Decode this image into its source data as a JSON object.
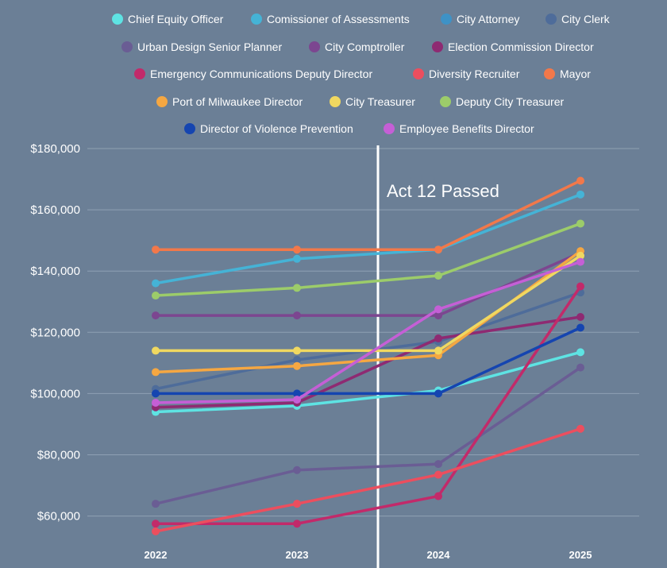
{
  "chart_data": {
    "type": "line",
    "x": [
      "2022",
      "2023",
      "2024",
      "2025"
    ],
    "ylim": [
      50000,
      180000
    ],
    "yticks": [
      60000,
      80000,
      100000,
      120000,
      140000,
      160000,
      180000
    ],
    "ytick_labels": [
      "$60,000",
      "$80,000",
      "$100,000",
      "$120,000",
      "$140,000",
      "$160,000",
      "$180,000"
    ],
    "grid": "horizontal",
    "legend_position": "top",
    "annotation": {
      "label": "Act 12 Passed",
      "between": [
        "2023",
        "2024"
      ]
    },
    "series": [
      {
        "name": "Chief Equity Officer",
        "color": "#5ee3e3",
        "values": [
          94000,
          96000,
          101000,
          113500
        ]
      },
      {
        "name": "Comissioner of Assessments",
        "color": "#45b3d6",
        "values": [
          136000,
          144000,
          147000,
          165000
        ]
      },
      {
        "name": "City Attorney",
        "color": "#3e92c6",
        "values": [
          null,
          null,
          null,
          null
        ]
      },
      {
        "name": "City Clerk",
        "color": "#4e6c9a",
        "values": [
          101500,
          111000,
          117000,
          133000
        ]
      },
      {
        "name": "Urban Design Senior Planner",
        "color": "#6a5d94",
        "values": [
          64000,
          75000,
          77000,
          108500
        ]
      },
      {
        "name": "City Comptroller",
        "color": "#7c4690",
        "values": [
          125500,
          125500,
          125500,
          146000
        ]
      },
      {
        "name": "Election Commission Director",
        "color": "#8e2a72",
        "values": [
          95500,
          97000,
          118000,
          125000
        ]
      },
      {
        "name": "Emergency Communications Deputy Director",
        "color": "#c22a6a",
        "values": [
          57500,
          57500,
          66500,
          135000
        ]
      },
      {
        "name": "Diversity Recruiter",
        "color": "#ec4e5e",
        "values": [
          55000,
          64000,
          73500,
          88500
        ]
      },
      {
        "name": "Mayor",
        "color": "#f2784a",
        "values": [
          147000,
          147000,
          147000,
          169500
        ]
      },
      {
        "name": "Port of Milwaukee Director",
        "color": "#f5a742",
        "values": [
          107000,
          109000,
          112500,
          146500
        ]
      },
      {
        "name": "City Treasurer",
        "color": "#f0d860",
        "values": [
          114000,
          114000,
          114000,
          145000
        ]
      },
      {
        "name": "Deputy City Treasurer",
        "color": "#9ccc6a",
        "values": [
          132000,
          134500,
          138500,
          155500
        ]
      },
      {
        "name": "Director of Violence Prevention",
        "color": "#1545b0",
        "values": [
          100000,
          100000,
          100000,
          121500
        ]
      },
      {
        "name": "Employee Benefits Director",
        "color": "#c55fd6",
        "values": [
          97000,
          98000,
          127500,
          143000
        ]
      }
    ]
  }
}
